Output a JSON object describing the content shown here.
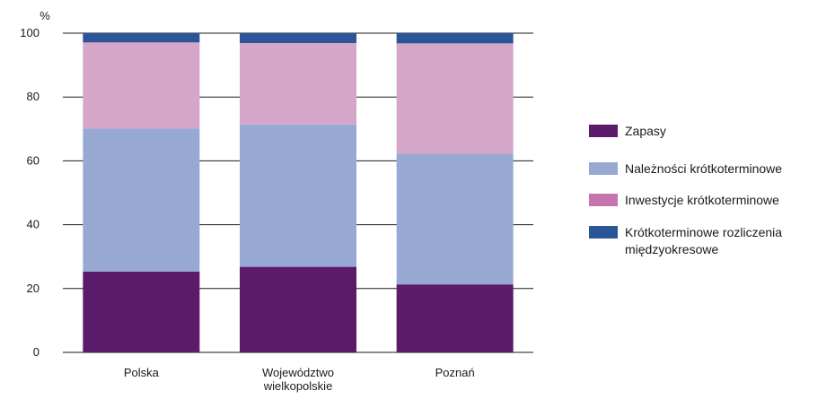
{
  "chart_data": {
    "type": "bar",
    "stacked": true,
    "ylabel": "%",
    "ylim": [
      0,
      100
    ],
    "yticks": [
      0,
      20,
      40,
      60,
      80,
      100
    ],
    "grid": true,
    "legend_position": "right",
    "categories": [
      [
        "Polska"
      ],
      [
        "Województwo",
        "wielkopolskie"
      ],
      [
        "Poznań"
      ]
    ],
    "series": [
      {
        "name": "Zapasy",
        "color": "#5c1a6b",
        "values": [
          25.3,
          26.8,
          21.3
        ]
      },
      {
        "name": "Należności krótkoterminowe",
        "color": "#97a9d3",
        "values": [
          44.8,
          44.6,
          40.9
        ]
      },
      {
        "name": "Inwestycje krótkoterminowe",
        "color": "#d5a6c9",
        "values": [
          27.0,
          25.5,
          34.6
        ]
      },
      {
        "name": "Krótkoterminowe rozliczenia międzyokresowe",
        "color": "#2c5597",
        "values": [
          2.9,
          3.1,
          3.2
        ]
      }
    ],
    "legend": [
      {
        "lines": [
          "Zapasy"
        ],
        "color": "#5c1a6b"
      },
      {
        "lines": [
          "Należności krótkoterminowe"
        ],
        "color": "#97a9d3"
      },
      {
        "lines": [
          "Inwestycje krótkoterminowe"
        ],
        "color": "#c774ae"
      },
      {
        "lines": [
          "Krótkoterminowe rozliczenia",
          "międzyokresowe"
        ],
        "color": "#2c5597"
      }
    ]
  }
}
